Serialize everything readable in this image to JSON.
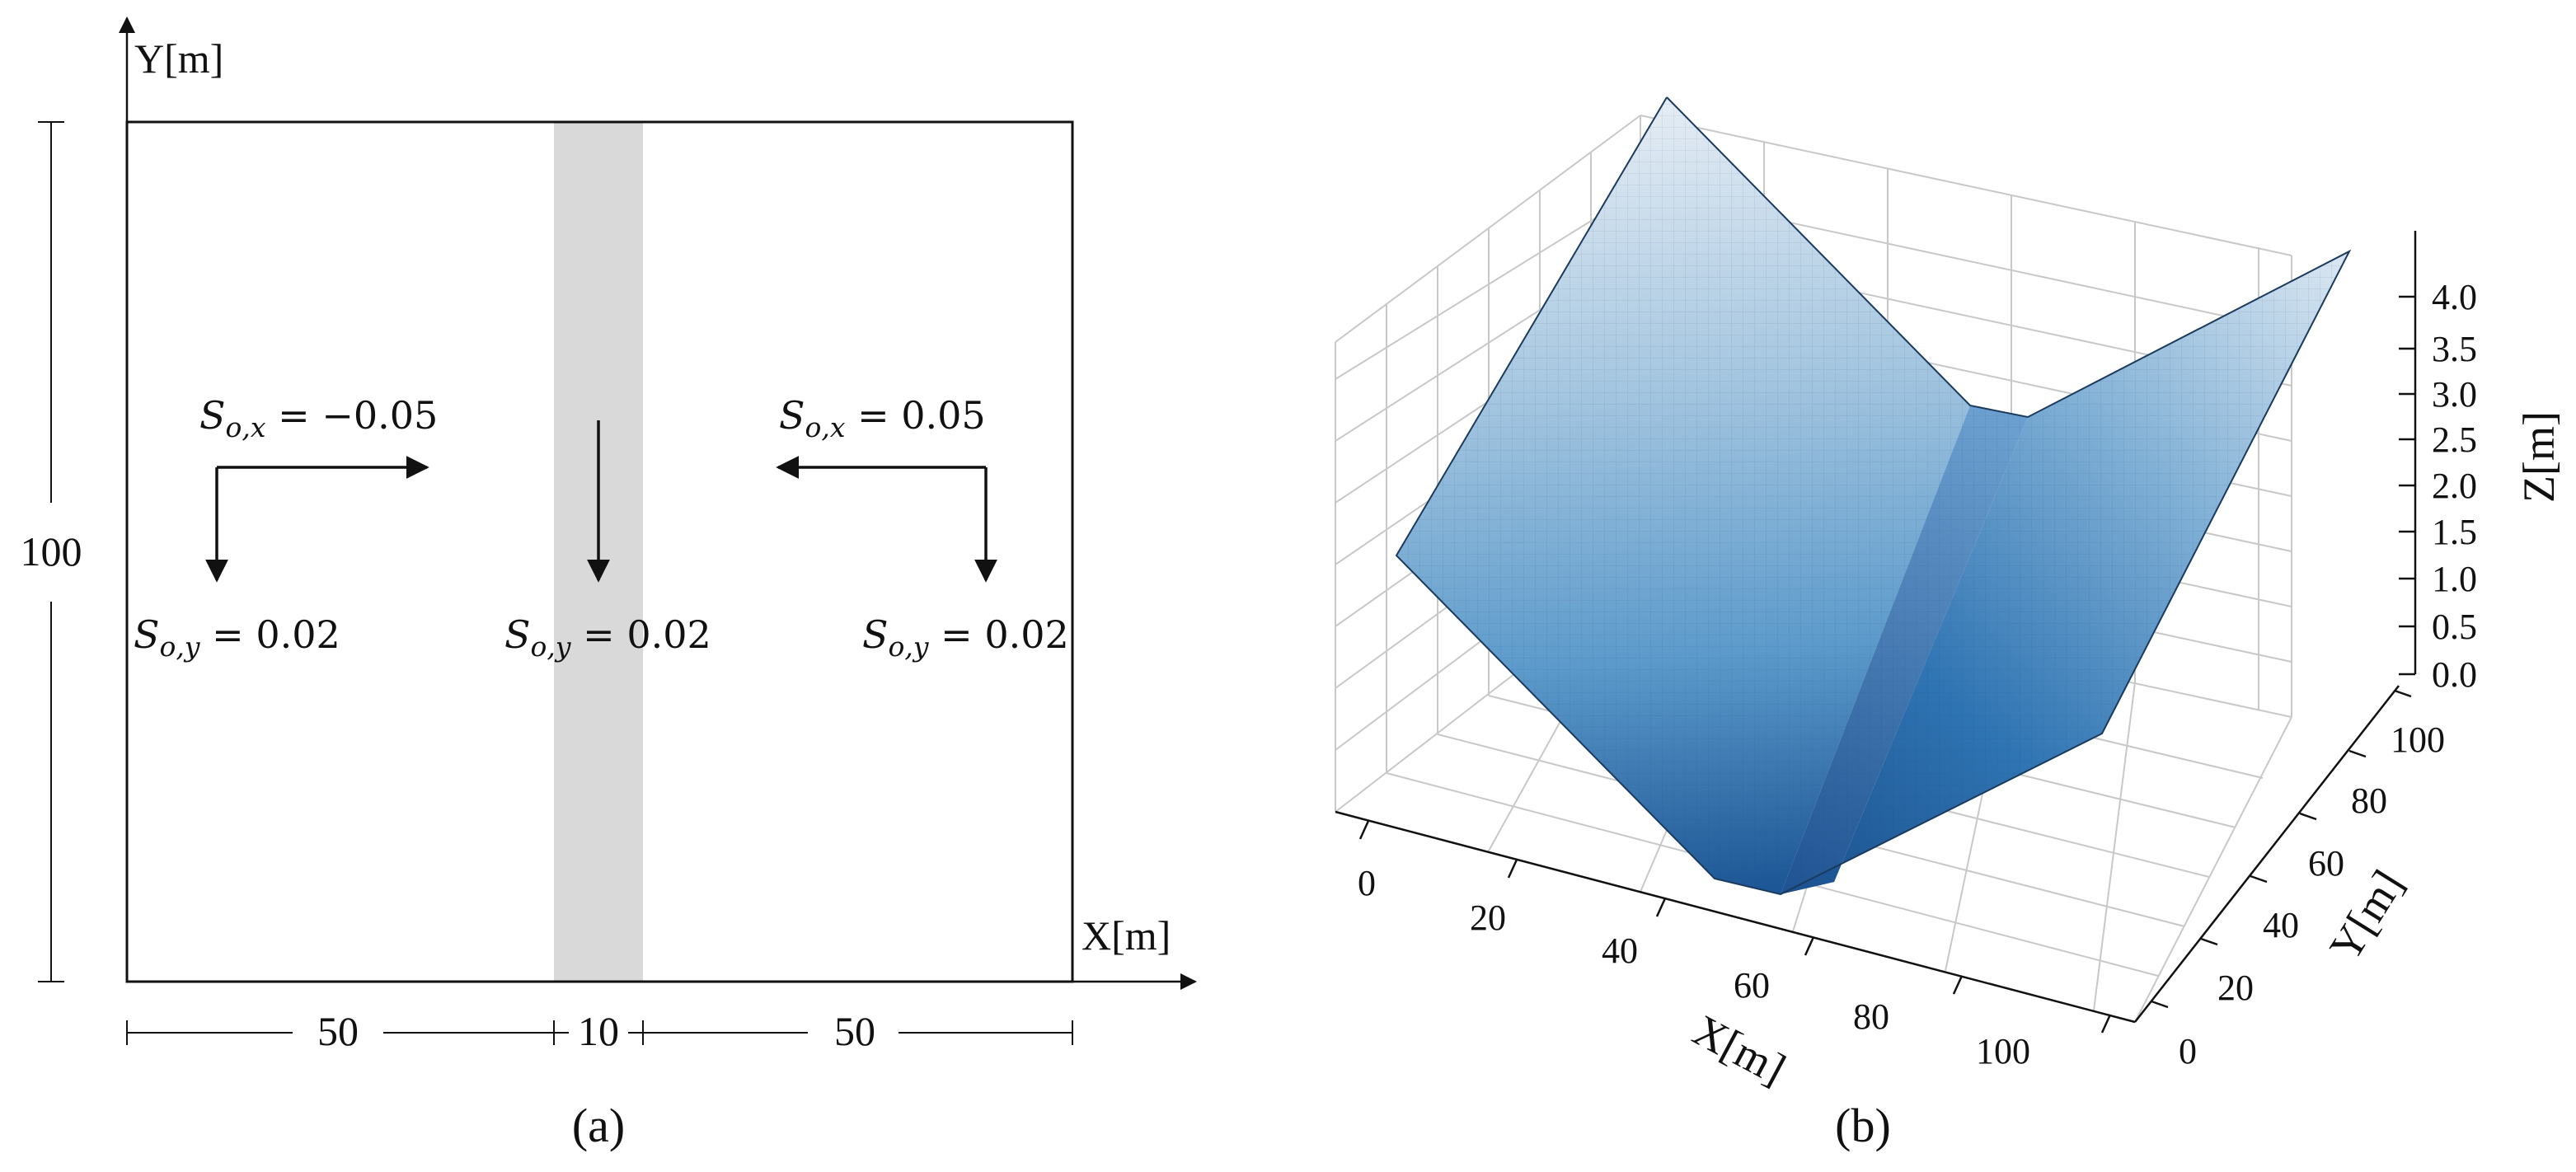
{
  "panel_a": {
    "y_axis_label": "Y[m]",
    "x_axis_label": "X[m]",
    "height_dim": "100",
    "width_dims": [
      "50",
      "10",
      "50"
    ],
    "caption": "(a)",
    "left_slope_x": {
      "sym": "S",
      "sub": "o,x",
      "rest": " = −0.05"
    },
    "left_slope_y": {
      "sym": "S",
      "sub": "o,y",
      "rest": " = 0.02"
    },
    "mid_slope_y": {
      "sym": "S",
      "sub": "o,y",
      "rest": " = 0.02"
    },
    "right_slope_x": {
      "sym": "S",
      "sub": "o,x",
      "rest": " = 0.05"
    },
    "right_slope_y": {
      "sym": "S",
      "sub": "o,y",
      "rest": " = 0.02"
    },
    "channel_color": "#d9d9d9"
  },
  "panel_b": {
    "caption": "(b)",
    "x_label": "X[m]",
    "y_label": "Y[m]",
    "z_label": "Z[m]",
    "x_ticks": [
      "0",
      "20",
      "40",
      "60",
      "80",
      "100"
    ],
    "y_ticks": [
      "0",
      "20",
      "40",
      "60",
      "80",
      "100"
    ],
    "z_ticks": [
      "0.0",
      "0.5",
      "1.0",
      "1.5",
      "2.0",
      "2.5",
      "3.0",
      "3.5",
      "4.0"
    ],
    "colormap": "Blues",
    "surface_light": "#e4ecf4",
    "surface_dark": "#1e5796"
  }
}
